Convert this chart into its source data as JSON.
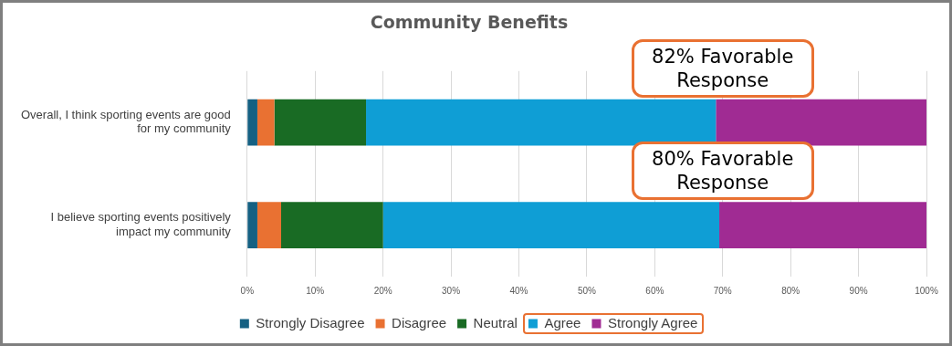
{
  "chart_data": {
    "type": "bar",
    "orientation": "horizontal",
    "stacked": true,
    "title": "Community Benefits",
    "categories": [
      "Overall, I think sporting events are good for my community",
      "I believe sporting events positively impact my community"
    ],
    "series": [
      {
        "name": "Strongly Disagree",
        "color": "#156082",
        "values": [
          1.5,
          1.5
        ]
      },
      {
        "name": "Disagree",
        "color": "#e97132",
        "values": [
          2.5,
          3.5
        ]
      },
      {
        "name": "Neutral",
        "color": "#196b24",
        "values": [
          13.5,
          15
        ]
      },
      {
        "name": "Agree",
        "color": "#0f9ed5",
        "values": [
          51.5,
          49.5
        ]
      },
      {
        "name": "Strongly Agree",
        "color": "#a02b93",
        "values": [
          31,
          30.5
        ]
      }
    ],
    "xlim": [
      0,
      100
    ],
    "xticks": [
      {
        "value": 0,
        "label": "0%"
      },
      {
        "value": 10,
        "label": "10%"
      },
      {
        "value": 20,
        "label": "20%"
      },
      {
        "value": 30,
        "label": "30%"
      },
      {
        "value": 40,
        "label": "40%"
      },
      {
        "value": 50,
        "label": "50%"
      },
      {
        "value": 60,
        "label": "60%"
      },
      {
        "value": 70,
        "label": "70%"
      },
      {
        "value": 80,
        "label": "80%"
      },
      {
        "value": 90,
        "label": "90%"
      },
      {
        "value": 100,
        "label": "100%"
      }
    ],
    "grid": "x",
    "legend": "bottom",
    "annotations": [
      "82% Favorable Response",
      "80% Favorable Response"
    ]
  }
}
